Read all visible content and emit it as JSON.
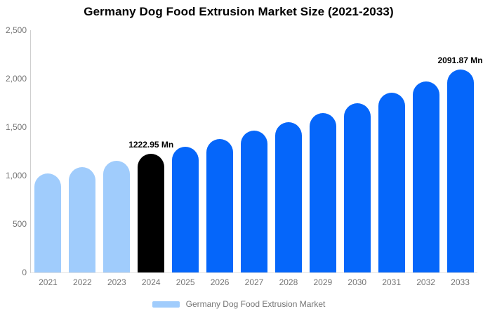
{
  "chart": {
    "title": "Germany Dog Food Extrusion Market Size (2021-2033)"
  },
  "legend": {
    "label": "Germany Dog Food Extrusion Market",
    "swatch_color": "#A0CCFC"
  },
  "colors": {
    "historical_bar": "#A0CCFC",
    "highlight_bar": "#000000",
    "forecast_bar": "#0566FA",
    "axis_line": "#CFCFCF",
    "tick_text": "#757575",
    "data_label_text": "#000000",
    "background": "#FFFFFF"
  },
  "chart_data": {
    "type": "bar",
    "title": "Germany Dog Food Extrusion Market Size (2021-2033)",
    "series_name": "Germany Dog Food Extrusion Market",
    "unit": "Mn",
    "categories": [
      "2021",
      "2022",
      "2023",
      "2024",
      "2025",
      "2026",
      "2027",
      "2028",
      "2029",
      "2030",
      "2031",
      "2032",
      "2033"
    ],
    "values": [
      1022.5,
      1085.4,
      1152.2,
      1222.95,
      1298.2,
      1378.0,
      1462.8,
      1552.7,
      1648.3,
      1749.7,
      1857.3,
      1971.6,
      2091.87
    ],
    "bar_colors": [
      "#A0CCFC",
      "#A0CCFC",
      "#A0CCFC",
      "#000000",
      "#0566FA",
      "#0566FA",
      "#0566FA",
      "#0566FA",
      "#0566FA",
      "#0566FA",
      "#0566FA",
      "#0566FA",
      "#0566FA"
    ],
    "data_labels": [
      {
        "index": 3,
        "text": "1222.95 Mn"
      },
      {
        "index": 12,
        "text": "2091.87 Mn"
      }
    ],
    "y_ticks": [
      {
        "value": 0,
        "label": "0"
      },
      {
        "value": 500,
        "label": "500"
      },
      {
        "value": 1000,
        "label": "1,000"
      },
      {
        "value": 1500,
        "label": "1,500"
      },
      {
        "value": 2000,
        "label": "2,000"
      },
      {
        "value": 2500,
        "label": "2,500"
      }
    ],
    "ylim": [
      0,
      2500
    ],
    "grid": false,
    "legend_position": "bottom"
  }
}
